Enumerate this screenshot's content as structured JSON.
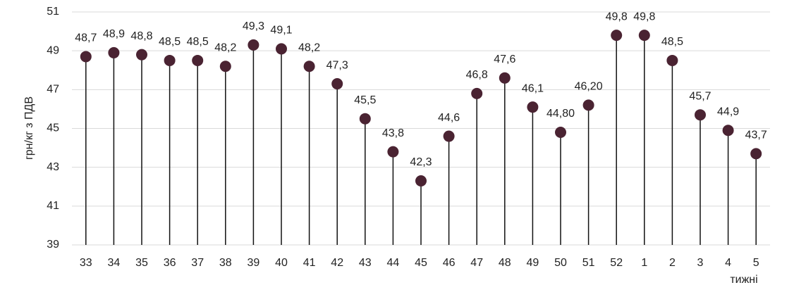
{
  "chart_data": {
    "type": "lollipop",
    "y_label": "грн/кг з ПДВ",
    "x_label": "тижні",
    "categories": [
      "33",
      "34",
      "35",
      "36",
      "37",
      "38",
      "39",
      "40",
      "41",
      "42",
      "43",
      "44",
      "45",
      "46",
      "47",
      "48",
      "49",
      "50",
      "51",
      "52",
      "1",
      "2",
      "3",
      "4",
      "5"
    ],
    "values": [
      48.7,
      48.9,
      48.8,
      48.5,
      48.5,
      48.2,
      49.3,
      49.1,
      48.2,
      47.3,
      45.5,
      43.8,
      42.3,
      44.6,
      46.8,
      47.6,
      46.1,
      44.8,
      46.2,
      49.8,
      49.8,
      48.5,
      45.7,
      44.9,
      43.7
    ],
    "value_labels": [
      "48,7",
      "48,9",
      "48,8",
      "48,5",
      "48,5",
      "48,2",
      "49,3",
      "49,1",
      "48,2",
      "47,3",
      "45,5",
      "43,8",
      "42,3",
      "44,6",
      "46,8",
      "47,6",
      "46,1",
      "44,80",
      "46,20",
      "49,8",
      "49,8",
      "48,5",
      "45,7",
      "44,9",
      "43,7"
    ],
    "color": "#4a2332",
    "ylim": [
      39,
      51
    ],
    "yticks": [
      39,
      41,
      43,
      45,
      47,
      49,
      51
    ],
    "grid": true
  }
}
